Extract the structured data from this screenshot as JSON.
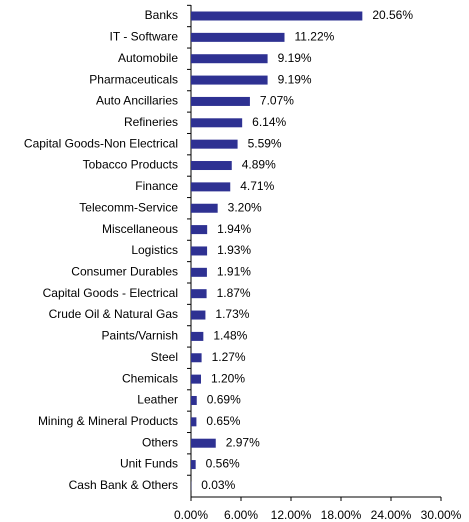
{
  "chart_data": {
    "type": "hbar",
    "categories": [
      "Banks",
      "IT - Software",
      "Automobile",
      "Pharmaceuticals",
      "Auto Ancillaries",
      "Refineries",
      "Capital Goods-Non Electrical",
      "Tobacco Products",
      "Finance",
      "Telecomm-Service",
      "Miscellaneous",
      "Logistics",
      "Consumer Durables",
      "Capital Goods - Electrical",
      "Crude Oil & Natural Gas",
      "Paints/Varnish",
      "Steel",
      "Chemicals",
      "Leather",
      "Mining & Mineral Products",
      "Others",
      "Unit Funds",
      "Cash Bank & Others"
    ],
    "values": [
      20.56,
      11.22,
      9.19,
      9.19,
      7.07,
      6.14,
      5.59,
      4.89,
      4.71,
      3.2,
      1.94,
      1.93,
      1.91,
      1.87,
      1.73,
      1.48,
      1.27,
      1.2,
      0.69,
      0.65,
      2.97,
      0.56,
      0.03
    ],
    "value_labels": [
      "20.56%",
      "11.22%",
      "9.19%",
      "9.19%",
      "7.07%",
      "6.14%",
      "5.59%",
      "4.89%",
      "4.71%",
      "3.20%",
      "1.94%",
      "1.93%",
      "1.91%",
      "1.87%",
      "1.73%",
      "1.48%",
      "1.27%",
      "1.20%",
      "0.69%",
      "0.65%",
      "2.97%",
      "0.56%",
      "0.03%"
    ],
    "color": "#2e3192",
    "xlim": [
      0,
      30
    ],
    "xticks": [
      {
        "value": 0,
        "label": "0.00%"
      },
      {
        "value": 6,
        "label": "6.00%"
      },
      {
        "value": 12,
        "label": "12.00%"
      },
      {
        "value": 18,
        "label": "18.00%"
      },
      {
        "value": 24,
        "label": "24.00%"
      },
      {
        "value": 30,
        "label": "30.00%"
      }
    ]
  }
}
